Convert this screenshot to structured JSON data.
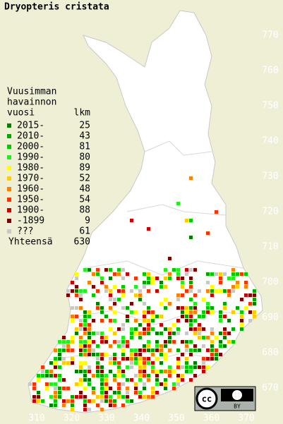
{
  "title": "Dryopteris cristata",
  "legend": {
    "heading": [
      "Vuusimman",
      "havainnon",
      "vuosi"
    ],
    "count_heading": "lkm",
    "entries": [
      {
        "label": "2015-",
        "count": "25",
        "color": "#008000"
      },
      {
        "label": "2010-",
        "count": "43",
        "color": "#00a800"
      },
      {
        "label": "2000-",
        "count": "81",
        "color": "#00cc00"
      },
      {
        "label": "1990-",
        "count": "80",
        "color": "#22ee22"
      },
      {
        "label": "1980-",
        "count": "89",
        "color": "#ffff00"
      },
      {
        "label": "1970-",
        "count": "52",
        "color": "#ffcc00"
      },
      {
        "label": "1960-",
        "count": "48",
        "color": "#ff7f00"
      },
      {
        "label": "1950-",
        "count": "54",
        "color": "#ff3300"
      },
      {
        "label": "1900-",
        "count": "88",
        "color": "#cc0000"
      },
      {
        "label": "-1899",
        "count": "9",
        "color": "#800000"
      },
      {
        "label": "???",
        "count": "61",
        "color": "#c8c8c8"
      }
    ],
    "total_label": "Yhteensä",
    "total": "630"
  },
  "x_labels": [
    "310",
    "320",
    "330",
    "340",
    "350",
    "360",
    "370"
  ],
  "y_labels": [
    "770",
    "760",
    "750",
    "740",
    "730",
    "720",
    "710",
    "700",
    "690",
    "680",
    "670"
  ],
  "license": {
    "cc": "cc",
    "by": "BY"
  }
}
